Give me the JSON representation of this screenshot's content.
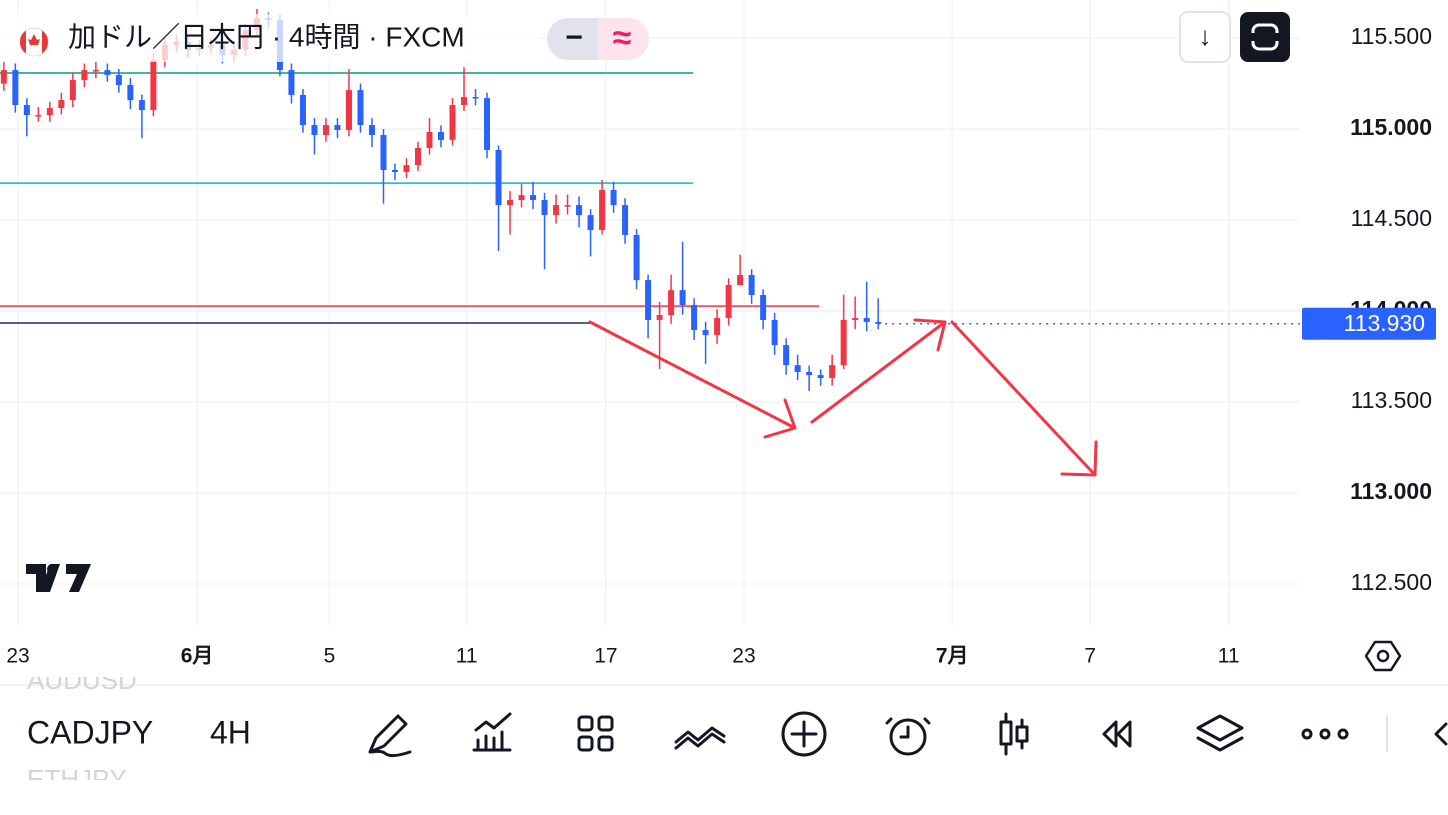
{
  "header": {
    "title": "加ドル／日本円 · 4時間 · FXCM",
    "minus": "−",
    "wave": "≈",
    "download": "↓"
  },
  "chart_data": {
    "type": "candlestick",
    "up_color": "#f23645",
    "down_color": "#2962ff",
    "grid": true,
    "xlim": [
      0,
      339
    ],
    "ylim": [
      112.275,
      115.709
    ],
    "xticks": [
      {
        "value": 4.7,
        "label": "23"
      },
      {
        "value": 51.4,
        "label": "6月"
      },
      {
        "value": 85.9,
        "label": "5"
      },
      {
        "value": 121.7,
        "label": "11"
      },
      {
        "value": 158,
        "label": "17"
      },
      {
        "value": 194,
        "label": "23"
      },
      {
        "value": 248.3,
        "label": "7月"
      },
      {
        "value": 284.3,
        "label": "7"
      },
      {
        "value": 320.4,
        "label": "11"
      }
    ],
    "yticks": [
      {
        "value": 115.5,
        "label": "115.500"
      },
      {
        "value": 115,
        "label": "115.000"
      },
      {
        "value": 114.5,
        "label": "114.500"
      },
      {
        "value": 114,
        "label": "114.000"
      },
      {
        "value": 113.5,
        "label": "113.500"
      },
      {
        "value": 113,
        "label": "113.000"
      },
      {
        "value": 112.5,
        "label": "112.500"
      }
    ],
    "last": {
      "value": 113.93,
      "label": "113.930",
      "color": "#2962ff"
    },
    "hlines": [
      {
        "value": 115.308,
        "color": "#089981",
        "xend": 180.7
      },
      {
        "value": 114.703,
        "color": "#00bcd4",
        "xend": 180.7
      },
      {
        "value": 114.027,
        "color": "#f23645",
        "xend": 213.6
      },
      {
        "value": 113.934,
        "color": "#1e2a5a",
        "xend": 154
      }
    ],
    "x": [
      1,
      4,
      7,
      10,
      13,
      16,
      19,
      22,
      25,
      28,
      31,
      34,
      37,
      40,
      43,
      46,
      49,
      52,
      55,
      58,
      61,
      64,
      67,
      70,
      73,
      76,
      79,
      82,
      85,
      88,
      91,
      94,
      97,
      100,
      103,
      106,
      109,
      112,
      115,
      118,
      121,
      124,
      127,
      130,
      133,
      136,
      139,
      142,
      145,
      148,
      151,
      154,
      157,
      160,
      163,
      166,
      169,
      172,
      175,
      178,
      181,
      184,
      187,
      190,
      193,
      196,
      199,
      202,
      205,
      208,
      211,
      214,
      217,
      220,
      223,
      226,
      229
    ],
    "open": [
      115.25,
      115.324,
      115.132,
      115.077,
      115.077,
      115.115,
      115.159,
      115.269,
      115.324,
      115.324,
      115.297,
      115.242,
      115.159,
      115.104,
      115.379,
      115.462,
      115.478,
      115.434,
      115.445,
      115.462,
      115.407,
      115.434,
      115.544,
      115.61,
      115.599,
      115.324,
      115.187,
      115.022,
      114.967,
      115.022,
      114.995,
      115.214,
      115.022,
      114.967,
      114.775,
      114.764,
      114.802,
      114.896,
      114.984,
      114.94,
      115.132,
      115.176,
      115.17,
      114.885,
      114.582,
      114.61,
      114.637,
      114.61,
      114.527,
      114.582,
      114.582,
      114.527,
      114.445,
      114.665,
      114.582,
      114.418,
      114.17,
      113.951,
      113.978,
      114.115,
      114.033,
      113.896,
      113.868,
      113.962,
      114.143,
      114.198,
      114.088,
      113.951,
      113.813,
      113.703,
      113.665,
      113.648,
      113.632,
      113.703,
      113.951,
      113.962,
      113.94
    ],
    "high": [
      115.37,
      115.36,
      115.17,
      115.12,
      115.15,
      115.2,
      115.31,
      115.36,
      115.37,
      115.36,
      115.33,
      115.28,
      115.19,
      115.42,
      115.5,
      115.52,
      115.51,
      115.49,
      115.5,
      115.5,
      115.47,
      115.58,
      115.66,
      115.64,
      115.63,
      115.36,
      115.22,
      115.06,
      115.06,
      115.06,
      115.33,
      115.25,
      115.06,
      115,
      114.81,
      114.84,
      114.93,
      115.06,
      115.02,
      115.17,
      115.34,
      115.22,
      115.2,
      114.91,
      114.66,
      114.7,
      114.71,
      114.65,
      114.64,
      114.64,
      114.63,
      114.56,
      114.72,
      114.71,
      114.62,
      114.45,
      114.2,
      114.05,
      114.2,
      114.38,
      114.07,
      113.94,
      114.01,
      114.18,
      114.31,
      114.23,
      114.12,
      113.99,
      113.85,
      113.76,
      113.7,
      113.68,
      113.76,
      114.09,
      114.08,
      114.16,
      114.07
    ],
    "low": [
      115.21,
      115.09,
      114.96,
      115.04,
      115.04,
      115.08,
      115.12,
      115.23,
      115.28,
      115.26,
      115.2,
      115.11,
      114.95,
      115.07,
      115.34,
      115.42,
      115.39,
      115.4,
      115.41,
      115.36,
      115.37,
      115.4,
      115.51,
      115.56,
      115.29,
      115.14,
      114.98,
      114.86,
      114.93,
      114.95,
      114.96,
      114.98,
      114.9,
      114.59,
      114.72,
      114.73,
      114.77,
      114.86,
      114.9,
      114.91,
      115.1,
      115.13,
      114.84,
      114.33,
      114.42,
      114.57,
      114.56,
      114.23,
      114.48,
      114.53,
      114.46,
      114.3,
      114.42,
      114.54,
      114.37,
      114.12,
      113.85,
      113.68,
      113.93,
      113.98,
      113.84,
      113.71,
      113.82,
      113.92,
      114.15,
      114.04,
      113.9,
      113.76,
      113.65,
      113.62,
      113.56,
      113.59,
      113.59,
      113.68,
      113.9,
      113.89,
      113.9
    ],
    "close": [
      115.324,
      115.132,
      115.077,
      115.077,
      115.115,
      115.159,
      115.269,
      115.324,
      115.324,
      115.297,
      115.242,
      115.159,
      115.104,
      115.379,
      115.462,
      115.478,
      115.434,
      115.445,
      115.462,
      115.407,
      115.434,
      115.544,
      115.61,
      115.599,
      115.324,
      115.187,
      115.022,
      114.967,
      115.022,
      114.995,
      115.214,
      115.022,
      114.967,
      114.775,
      114.764,
      114.802,
      114.896,
      114.984,
      114.94,
      115.132,
      115.176,
      115.17,
      114.885,
      114.582,
      114.61,
      114.637,
      114.61,
      114.527,
      114.582,
      114.582,
      114.527,
      114.445,
      114.665,
      114.582,
      114.418,
      114.17,
      113.951,
      113.978,
      114.115,
      114.033,
      113.896,
      113.868,
      113.962,
      114.143,
      114.198,
      114.088,
      113.951,
      113.813,
      113.703,
      113.665,
      113.648,
      113.632,
      113.703,
      113.951,
      113.962,
      113.94,
      113.93
    ]
  },
  "toolbar": {
    "prev_symbol": "AUDUSD",
    "symbol": "CADJPY",
    "interval": "4H",
    "next_symbol": "ETHJPY"
  }
}
